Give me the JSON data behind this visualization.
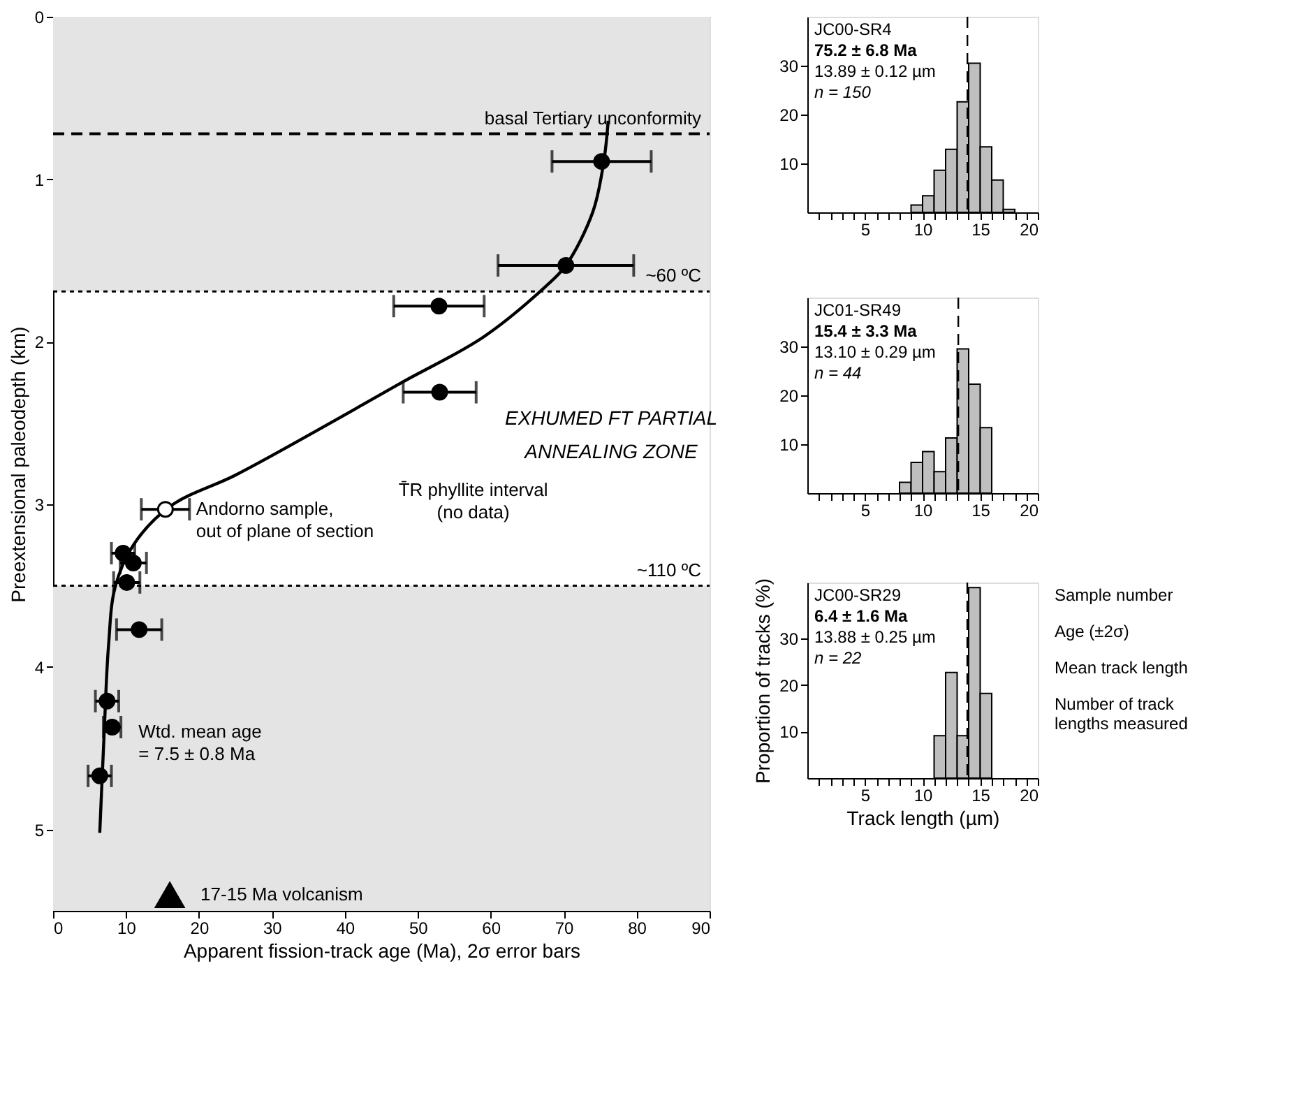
{
  "chart_data": [
    {
      "type": "scatter",
      "xlabel": "Apparent fission-track age (Ma), 2σ error bars",
      "ylabel": "Preextensional paleodepth (km)",
      "xlim": [
        0,
        90
      ],
      "xticks": [
        0,
        10,
        20,
        30,
        40,
        50,
        60,
        70,
        80,
        90
      ],
      "ylim": [
        5.5,
        0
      ],
      "yticks": [
        0,
        1,
        2,
        3,
        4,
        5
      ],
      "grid": false,
      "series": [
        {
          "type": "line",
          "color": "#000000",
          "line_style": "solid",
          "x": [
            76.1,
            75.5,
            74.0,
            70.3,
            67.5,
            59.0,
            47.8,
            36.0,
            25.0,
            16.1,
            11.0,
            8.5,
            7.6,
            7.0,
            6.4
          ],
          "values": [
            0.64,
            0.89,
            1.2,
            1.53,
            1.66,
            1.97,
            2.25,
            2.55,
            2.82,
            3.01,
            3.25,
            3.51,
            3.87,
            4.41,
            5.02
          ]
        },
        {
          "type": "scatter",
          "color": "#000000",
          "marker": "circle",
          "x": [
            75.2,
            70.3,
            52.9,
            53.0,
            9.6,
            11.0,
            10.1,
            11.8,
            7.4,
            8.1,
            6.4
          ],
          "values": [
            0.89,
            1.53,
            1.78,
            2.31,
            3.3,
            3.36,
            3.48,
            3.77,
            4.21,
            4.37,
            4.67
          ],
          "xerrors": [
            6.8,
            9.3,
            6.2,
            5.0,
            1.6,
            1.8,
            1.8,
            3.1,
            1.6,
            1.2,
            1.6
          ]
        },
        {
          "type": "scatter",
          "color": "#ffffff",
          "marker": "circle",
          "x": [
            15.4
          ],
          "values": [
            3.03
          ],
          "xerrors": [
            3.3
          ]
        }
      ],
      "bands": [
        {
          "axis": "y",
          "from": 0,
          "to": 1.69,
          "color": "#e4e4e4"
        },
        {
          "axis": "y",
          "from": 3.5,
          "to": 5.5,
          "color": "#e4e4e4"
        }
      ],
      "ref_lines": [
        {
          "axis": "y",
          "value": 0.72,
          "label": "basal Tertiary unconformity",
          "line_style": "dashed"
        },
        {
          "axis": "y",
          "value": 1.69,
          "label": "~60 ºC",
          "line_style": "dotted"
        },
        {
          "axis": "y",
          "value": 3.5,
          "label": "~110 ºC",
          "line_style": "dotted"
        }
      ],
      "annotations": [
        {
          "text": "Wtd. mean age\n= 7.5 ± 0.8 Ma",
          "x": 7.5,
          "y": 4.4
        },
        {
          "text": "Andorno sample,\nout of plane of section",
          "x": 15.4,
          "y": 3.03
        },
        "T̄R phyllite interval\n(no data)",
        {
          "text": "17-15 Ma volcanism",
          "x": 16,
          "y": 5.4
        },
        "EXHUMED FT PARTIAL\nANNEALING ZONE"
      ]
    },
    {
      "type": "histogram",
      "bins": [
        9,
        10,
        11,
        12,
        13,
        14,
        15,
        16,
        17,
        18
      ],
      "values": [
        1.5,
        3.4,
        8.6,
        12.9,
        22.6,
        30.5,
        13.4,
        6.6,
        0.6
      ],
      "color": "#bfbfbf",
      "xlim": [
        0,
        20
      ],
      "xticks": [
        {
          "value": 1,
          "label": null
        },
        {
          "value": 2,
          "label": null
        },
        {
          "value": 3,
          "label": null
        },
        {
          "value": 4,
          "label": null
        },
        5,
        {
          "value": 6,
          "label": null
        },
        {
          "value": 7,
          "label": null
        },
        {
          "value": 8,
          "label": null
        },
        {
          "value": 9,
          "label": null
        },
        10,
        {
          "value": 11,
          "label": null
        },
        {
          "value": 12,
          "label": null
        },
        {
          "value": 13,
          "label": null
        },
        {
          "value": 14,
          "label": null
        },
        15,
        {
          "value": 16,
          "label": null
        },
        {
          "value": 17,
          "label": null
        },
        {
          "value": 18,
          "label": null
        },
        {
          "value": 19,
          "label": null
        },
        20
      ],
      "ylim": [
        0,
        40
      ],
      "yticks": [
        10,
        20,
        30
      ],
      "grid": false,
      "ref_lines": [
        {
          "axis": "x",
          "value": 13.89,
          "line_style": "dashed"
        }
      ],
      "annotations": [
        "JC00-SR4",
        "75.2 ± 6.8 Ma",
        "13.89 ± 0.12 µm",
        "n = 150"
      ]
    },
    {
      "type": "histogram",
      "bins": [
        8,
        9,
        10,
        11,
        12,
        13,
        14,
        15,
        16
      ],
      "values": [
        2.2,
        6.3,
        8.5,
        4.4,
        11.3,
        29.5,
        22.3,
        13.4
      ],
      "color": "#bfbfbf",
      "xlim": [
        0,
        20
      ],
      "xticks": [
        {
          "value": 1,
          "label": null
        },
        {
          "value": 2,
          "label": null
        },
        {
          "value": 3,
          "label": null
        },
        {
          "value": 4,
          "label": null
        },
        5,
        {
          "value": 6,
          "label": null
        },
        {
          "value": 7,
          "label": null
        },
        {
          "value": 8,
          "label": null
        },
        {
          "value": 9,
          "label": null
        },
        10,
        {
          "value": 11,
          "label": null
        },
        {
          "value": 12,
          "label": null
        },
        {
          "value": 13,
          "label": null
        },
        {
          "value": 14,
          "label": null
        },
        15,
        {
          "value": 16,
          "label": null
        },
        {
          "value": 17,
          "label": null
        },
        {
          "value": 18,
          "label": null
        },
        {
          "value": 19,
          "label": null
        },
        20
      ],
      "ylim": [
        0,
        40
      ],
      "yticks": [
        10,
        20,
        30
      ],
      "grid": false,
      "ref_lines": [
        {
          "axis": "x",
          "value": 13.1,
          "line_style": "dashed"
        }
      ],
      "annotations": [
        "JC01-SR49",
        "15.4 ± 3.3 Ma",
        "13.10 ± 0.29 µm",
        "n = 44"
      ]
    },
    {
      "type": "histogram",
      "bins": [
        11,
        12,
        13,
        14,
        15,
        16
      ],
      "values": [
        9.1,
        22.7,
        9.1,
        40.9,
        18.2
      ],
      "color": "#bfbfbf",
      "xlabel": "Track length (µm)",
      "ylabel": "Proportion of tracks (%)",
      "xlim": [
        0,
        20
      ],
      "xticks": [
        {
          "value": 1,
          "label": null
        },
        {
          "value": 2,
          "label": null
        },
        {
          "value": 3,
          "label": null
        },
        {
          "value": 4,
          "label": null
        },
        5,
        {
          "value": 6,
          "label": null
        },
        {
          "value": 7,
          "label": null
        },
        {
          "value": 8,
          "label": null
        },
        {
          "value": 9,
          "label": null
        },
        10,
        {
          "value": 11,
          "label": null
        },
        {
          "value": 12,
          "label": null
        },
        {
          "value": 13,
          "label": null
        },
        {
          "value": 14,
          "label": null
        },
        15,
        {
          "value": 16,
          "label": null
        },
        {
          "value": 17,
          "label": null
        },
        {
          "value": 18,
          "label": null
        },
        {
          "value": 19,
          "label": null
        },
        20
      ],
      "ylim": [
        0,
        42
      ],
      "yticks": [
        10,
        20,
        30
      ],
      "grid": false,
      "ref_lines": [
        {
          "axis": "x",
          "value": 13.88,
          "line_style": "dashed"
        }
      ],
      "annotations": [
        "JC00-SR29",
        "6.4 ± 1.6 Ma",
        "13.88 ± 0.25 µm",
        "n = 22",
        "Sample number",
        "Age (±2σ)",
        "Mean track length",
        "Number of track\nlengths measured"
      ]
    }
  ]
}
